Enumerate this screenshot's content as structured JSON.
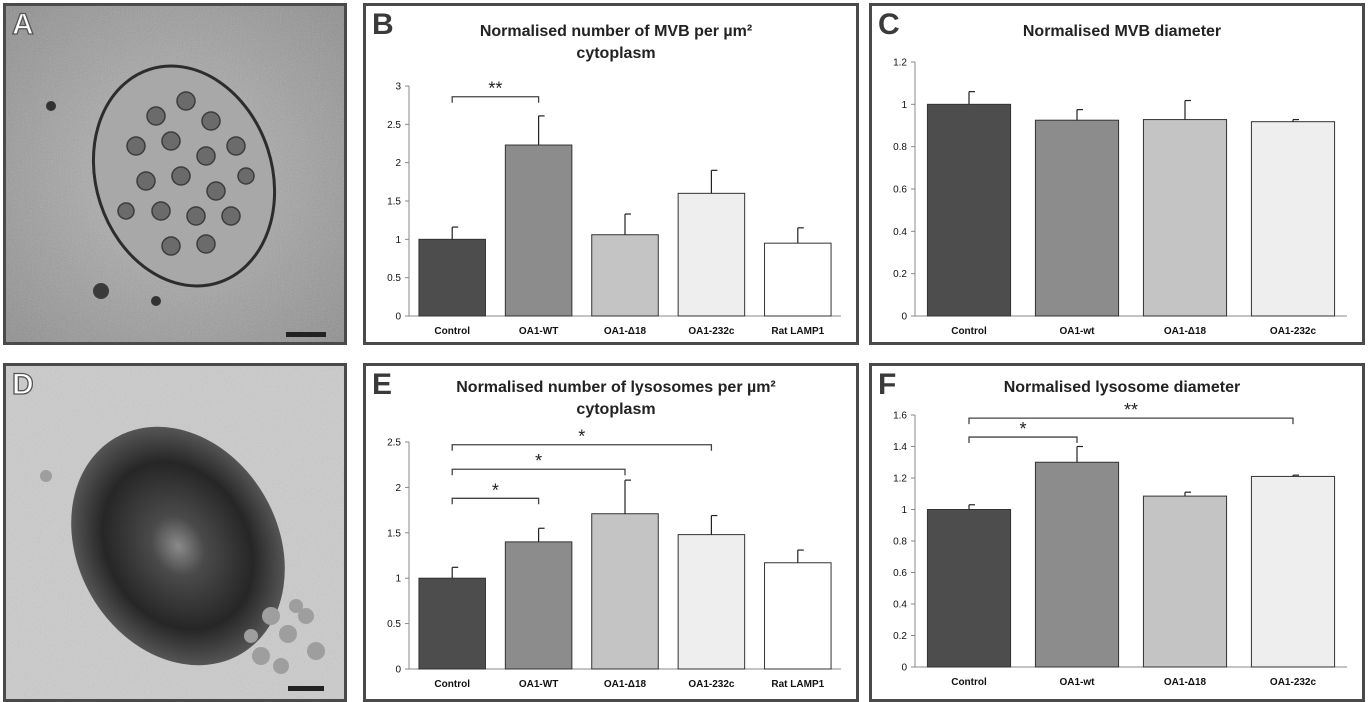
{
  "panels": {
    "A": {
      "letter": "A",
      "description_icon": "em-image-mvb"
    },
    "D": {
      "letter": "D",
      "description_icon": "em-image-lysosome"
    },
    "B": {
      "letter": "B"
    },
    "C": {
      "letter": "C"
    },
    "E": {
      "letter": "E"
    },
    "F": {
      "letter": "F"
    }
  },
  "chart_data": [
    {
      "panel": "B",
      "type": "bar",
      "title": [
        "Normalised number of MVB per µm²",
        "cytoplasm"
      ],
      "categories": [
        "Control",
        "OA1-WT",
        "OA1-Δ18",
        "OA1-232c",
        "Rat LAMP1"
      ],
      "values": [
        1.0,
        2.23,
        1.06,
        1.6,
        0.95
      ],
      "errors": [
        0.16,
        0.38,
        0.27,
        0.3,
        0.2
      ],
      "colors": [
        "#4d4d4d",
        "#8c8c8c",
        "#c4c4c4",
        "#eeeeee",
        "#ffffff"
      ],
      "yticks": [
        "0",
        "0.5",
        "1",
        "1.5",
        "2",
        "2.5",
        "3"
      ],
      "ylim": [
        0,
        3
      ],
      "significance": [
        {
          "from": 0,
          "to": 1,
          "label": "**",
          "level": 2.86
        }
      ]
    },
    {
      "panel": "C",
      "type": "bar",
      "title": [
        "Normalised MVB diameter"
      ],
      "categories": [
        "Control",
        "OA1-wt",
        "OA1-Δ18",
        "OA1-232c"
      ],
      "values": [
        1.0,
        0.925,
        0.928,
        0.918
      ],
      "errors": [
        0.06,
        0.05,
        0.09,
        0.01
      ],
      "colors": [
        "#4d4d4d",
        "#8c8c8c",
        "#c4c4c4",
        "#eeeeee"
      ],
      "yticks": [
        "0",
        "0.2",
        "0.4",
        "0.6",
        "0.8",
        "1",
        "1.2"
      ],
      "ylim": [
        0,
        1.2
      ],
      "significance": []
    },
    {
      "panel": "E",
      "type": "bar",
      "title": [
        "Normalised number of lysosomes per µm²",
        "cytoplasm"
      ],
      "categories": [
        "Control",
        "OA1-WT",
        "OA1-Δ18",
        "OA1-232c",
        "Rat LAMP1"
      ],
      "values": [
        1.0,
        1.4,
        1.71,
        1.48,
        1.17
      ],
      "errors": [
        0.12,
        0.15,
        0.37,
        0.21,
        0.14
      ],
      "colors": [
        "#4d4d4d",
        "#8c8c8c",
        "#c4c4c4",
        "#eeeeee",
        "#ffffff"
      ],
      "yticks": [
        "0",
        "0.5",
        "1",
        "1.5",
        "2",
        "2.5"
      ],
      "ylim": [
        0,
        2.5
      ],
      "significance": [
        {
          "from": 0,
          "to": 1,
          "label": "*",
          "level": 1.88
        },
        {
          "from": 0,
          "to": 2,
          "label": "*",
          "level": 2.2
        },
        {
          "from": 0,
          "to": 3,
          "label": "*",
          "level": 2.47
        }
      ]
    },
    {
      "panel": "F",
      "type": "bar",
      "title": [
        "Normalised lysosome diameter"
      ],
      "categories": [
        "Control",
        "OA1-wt",
        "OA1-Δ18",
        "OA1-232c"
      ],
      "values": [
        1.0,
        1.3,
        1.085,
        1.21
      ],
      "errors": [
        0.03,
        0.1,
        0.025,
        0.008
      ],
      "colors": [
        "#4d4d4d",
        "#8c8c8c",
        "#c4c4c4",
        "#eeeeee"
      ],
      "yticks": [
        "0",
        "0.2",
        "0.4",
        "0.6",
        "0.8",
        "1",
        "1.2",
        "1.4",
        "1.6"
      ],
      "ylim": [
        0,
        1.6
      ],
      "significance": [
        {
          "from": 0,
          "to": 1,
          "label": "*",
          "level": 1.46
        },
        {
          "from": 0,
          "to": 3,
          "label": "**",
          "level": 1.58
        }
      ]
    }
  ]
}
